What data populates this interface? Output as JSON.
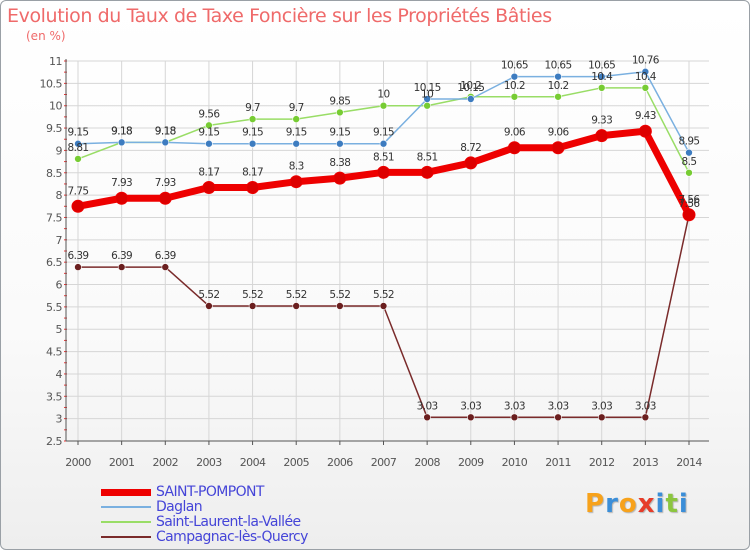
{
  "colors": {
    "title": "#ef6a6a",
    "axis": "#555555",
    "grid": "#d6d6d6",
    "legend_text": "#4545d8"
  },
  "chart_data": {
    "type": "line",
    "title": "Evolution du Taux de Taxe Foncière sur les Propriétés Bâties",
    "ylabel": "(en %)",
    "xlabel": "",
    "categories": [
      "2000",
      "2001",
      "2002",
      "2003",
      "2004",
      "2005",
      "2006",
      "2007",
      "2008",
      "2009",
      "2010",
      "2011",
      "2012",
      "2013",
      "2014"
    ],
    "ylim": [
      2.5,
      11
    ],
    "yticks": [
      "2.5",
      "3",
      "3.5",
      "4",
      "4.5",
      "5",
      "5.5",
      "6",
      "6.5",
      "7",
      "7.5",
      "8",
      "8.5",
      "9",
      "9.5",
      "10",
      "10.5",
      "11"
    ],
    "series": [
      {
        "name": "Campagnac-lès-Quercy",
        "color": "#7a2b2b",
        "marker_color": "#6b1f1f",
        "width": 1.5,
        "marker_size": 3.5,
        "values": [
          6.39,
          6.39,
          6.39,
          5.52,
          5.52,
          5.52,
          5.52,
          5.52,
          3.03,
          3.03,
          3.03,
          3.03,
          3.03,
          3.03,
          7.56
        ],
        "labels": [
          "6.39",
          "6.39",
          "6.39",
          "5.52",
          "5.52",
          "5.52",
          "5.52",
          "5.52",
          "3.03",
          "3.03",
          "3.03",
          "3.03",
          "3.03",
          "3.03",
          "7.56"
        ]
      },
      {
        "name": "Saint-Laurent-la-Vallée",
        "color": "#99dd66",
        "marker_color": "#77cc33",
        "width": 1.5,
        "marker_size": 3.5,
        "values": [
          8.81,
          9.18,
          9.18,
          9.56,
          9.7,
          9.7,
          9.85,
          10,
          10,
          10.2,
          10.2,
          10.2,
          10.4,
          10.4,
          8.5
        ],
        "labels": [
          "8.81",
          "9.18",
          "9.18",
          "9.56",
          "9.7",
          "9.7",
          "9.85",
          "10",
          "10",
          "10.2",
          "10.2",
          "10.2",
          "10.4",
          "10.4",
          "8.5"
        ]
      },
      {
        "name": "Daglan",
        "color": "#7ab0e0",
        "marker_color": "#3d7cc0",
        "width": 1.5,
        "marker_size": 3.5,
        "values": [
          9.15,
          9.18,
          9.18,
          9.15,
          9.15,
          9.15,
          9.15,
          9.15,
          10.15,
          10.15,
          10.65,
          10.65,
          10.65,
          10.76,
          8.95
        ],
        "labels": [
          "9.15",
          "9.18",
          "9.18",
          "9.15",
          "9.15",
          "9.15",
          "9.15",
          "9.15",
          "10.15",
          "10.15",
          "10.65",
          "10.65",
          "10.65",
          "10.76",
          "8.95"
        ]
      },
      {
        "name": "SAINT-POMPONT",
        "color": "#ee0000",
        "marker_color": "#dd0000",
        "width": 7,
        "marker_size": 6,
        "values": [
          7.75,
          7.93,
          7.93,
          8.17,
          8.17,
          8.3,
          8.38,
          8.51,
          8.51,
          8.72,
          9.06,
          9.06,
          9.33,
          9.43,
          7.56
        ],
        "labels": [
          "7.75",
          "7.93",
          "7.93",
          "8.17",
          "8.17",
          "8.3",
          "8.38",
          "8.51",
          "8.51",
          "8.72",
          "9.06",
          "9.06",
          "9.33",
          "9.43",
          "7.56"
        ]
      }
    ]
  },
  "legend": [
    {
      "label": "SAINT-POMPONT",
      "color": "#ee0000",
      "thickness": 7
    },
    {
      "label": "Daglan",
      "color": "#7ab0e0",
      "thickness": 2
    },
    {
      "label": "Saint-Laurent-la-Vallée",
      "color": "#99dd66",
      "thickness": 2
    },
    {
      "label": "Campagnac-lès-Quercy",
      "color": "#7a2b2b",
      "thickness": 2
    }
  ],
  "logo": {
    "letters": [
      "P",
      "r",
      "o",
      "x",
      "i",
      "t",
      "i"
    ],
    "colors": [
      "#f7a21b",
      "#3b8ed8",
      "#f7a21b",
      "#e63c2a",
      "#3b8ed8",
      "#8cc63f",
      "#3b8ed8"
    ]
  }
}
